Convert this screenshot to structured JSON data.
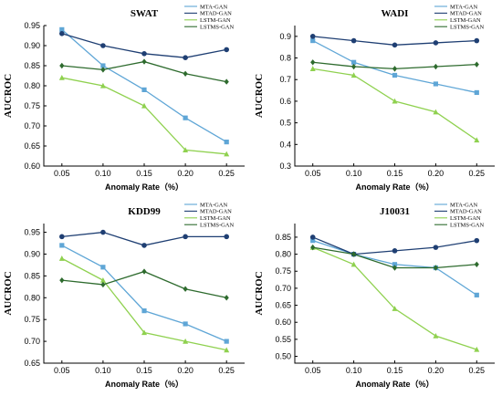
{
  "chart_data": [
    {
      "type": "line",
      "title": "SWAT",
      "xlabel": "Anomaly Rate（%）",
      "ylabel": "AUCROC",
      "x": [
        0.05,
        0.1,
        0.15,
        0.2,
        0.25
      ],
      "x_tick_labels": [
        "0.05",
        "0.10",
        "0.15",
        "0.20",
        "0.25"
      ],
      "ylim": [
        0.6,
        0.95
      ],
      "y_ticks": [
        "0.60",
        "0.65",
        "0.70",
        "0.75",
        "0.80",
        "0.85",
        "0.90",
        "0.95"
      ],
      "legend_position": "top-right",
      "series": [
        {
          "name": "MTA-GAN",
          "color": "#5fa6d6",
          "marker": "square",
          "values": [
            0.94,
            0.85,
            0.79,
            0.72,
            0.66
          ]
        },
        {
          "name": "MTAD-GAN",
          "color": "#1f3f73",
          "marker": "circle",
          "values": [
            0.93,
            0.9,
            0.88,
            0.87,
            0.89
          ]
        },
        {
          "name": "LSTM-GAN",
          "color": "#8fd14f",
          "marker": "triangle",
          "values": [
            0.82,
            0.8,
            0.75,
            0.64,
            0.63
          ]
        },
        {
          "name": "LSTMS-GAN",
          "color": "#2e6b2e",
          "marker": "diamond",
          "values": [
            0.85,
            0.84,
            0.86,
            0.83,
            0.81
          ]
        }
      ]
    },
    {
      "type": "line",
      "title": "WADI",
      "xlabel": "Anomaly Rate（%）",
      "ylabel": "AUCROC",
      "x": [
        0.05,
        0.1,
        0.15,
        0.2,
        0.25
      ],
      "x_tick_labels": [
        "0.05",
        "0.10",
        "0.15",
        "0.20",
        "0.25"
      ],
      "ylim": [
        0.3,
        0.95
      ],
      "y_ticks": [
        "0.3",
        "0.4",
        "0.5",
        "0.6",
        "0.7",
        "0.8",
        "0.9"
      ],
      "legend_position": "top-right",
      "series": [
        {
          "name": "MTA-GAN",
          "color": "#5fa6d6",
          "marker": "square",
          "values": [
            0.88,
            0.78,
            0.72,
            0.68,
            0.64
          ]
        },
        {
          "name": "MTAD-GAN",
          "color": "#1f3f73",
          "marker": "circle",
          "values": [
            0.9,
            0.88,
            0.86,
            0.87,
            0.88
          ]
        },
        {
          "name": "LSTM-GAN",
          "color": "#8fd14f",
          "marker": "triangle",
          "values": [
            0.75,
            0.72,
            0.6,
            0.55,
            0.42
          ]
        },
        {
          "name": "LSTMS-GAN",
          "color": "#2e6b2e",
          "marker": "diamond",
          "values": [
            0.78,
            0.76,
            0.75,
            0.76,
            0.77
          ]
        }
      ]
    },
    {
      "type": "line",
      "title": "KDD99",
      "xlabel": "Anomaly Rate（%）",
      "ylabel": "AUCROC",
      "x": [
        0.05,
        0.1,
        0.15,
        0.2,
        0.25
      ],
      "x_tick_labels": [
        "0.05",
        "0.10",
        "0.15",
        "0.20",
        "0.25"
      ],
      "ylim": [
        0.65,
        0.97
      ],
      "y_ticks": [
        "0.65",
        "0.70",
        "0.75",
        "0.80",
        "0.85",
        "0.90",
        "0.95"
      ],
      "legend_position": "top-right",
      "series": [
        {
          "name": "MTA-GAN",
          "color": "#5fa6d6",
          "marker": "square",
          "values": [
            0.92,
            0.87,
            0.77,
            0.74,
            0.7
          ]
        },
        {
          "name": "MTAD-GAN",
          "color": "#1f3f73",
          "marker": "circle",
          "values": [
            0.94,
            0.95,
            0.92,
            0.94,
            0.94
          ]
        },
        {
          "name": "LSTM-GAN",
          "color": "#8fd14f",
          "marker": "triangle",
          "values": [
            0.89,
            0.84,
            0.72,
            0.7,
            0.68
          ]
        },
        {
          "name": "LSTMS-GAN",
          "color": "#2e6b2e",
          "marker": "diamond",
          "values": [
            0.84,
            0.83,
            0.86,
            0.82,
            0.8
          ]
        }
      ]
    },
    {
      "type": "line",
      "title": "J10031",
      "xlabel": "Anomaly Rate（%）",
      "ylabel": "AUCROC",
      "x": [
        0.05,
        0.1,
        0.15,
        0.2,
        0.25
      ],
      "x_tick_labels": [
        "0.05",
        "0.10",
        "0.15",
        "0.20",
        "0.25"
      ],
      "ylim": [
        0.48,
        0.89
      ],
      "y_ticks": [
        "0.50",
        "0.55",
        "0.60",
        "0.65",
        "0.70",
        "0.75",
        "0.80",
        "0.85"
      ],
      "legend_position": "top-right",
      "series": [
        {
          "name": "MTA-GAN",
          "color": "#5fa6d6",
          "marker": "square",
          "values": [
            0.84,
            0.8,
            0.77,
            0.76,
            0.68
          ]
        },
        {
          "name": "MTAD-GAN",
          "color": "#1f3f73",
          "marker": "circle",
          "values": [
            0.85,
            0.8,
            0.81,
            0.82,
            0.84
          ]
        },
        {
          "name": "LSTM-GAN",
          "color": "#8fd14f",
          "marker": "triangle",
          "values": [
            0.82,
            0.77,
            0.64,
            0.56,
            0.52
          ]
        },
        {
          "name": "LSTMS-GAN",
          "color": "#2e6b2e",
          "marker": "diamond",
          "values": [
            0.82,
            0.8,
            0.76,
            0.76,
            0.77
          ]
        }
      ]
    }
  ]
}
